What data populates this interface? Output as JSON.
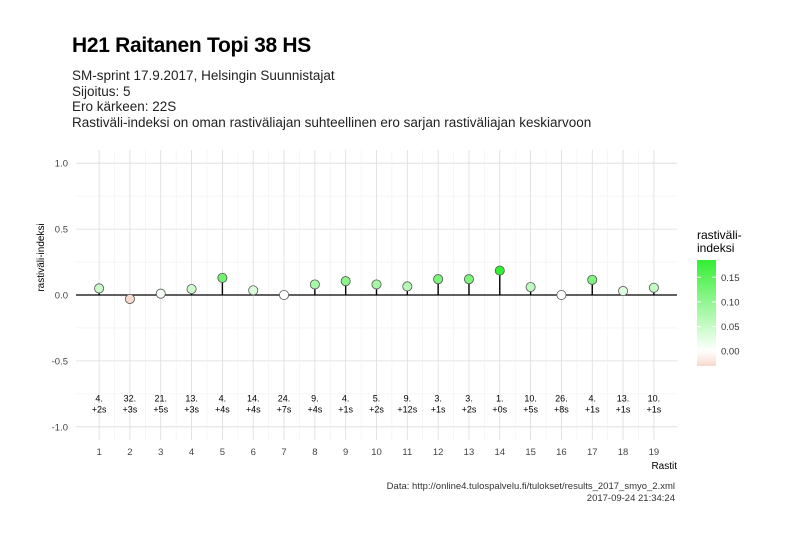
{
  "title": "H21 Raitanen Topi 38 HS",
  "subtitle_lines": [
    "SM-sprint 17.9.2017, Helsingin Suunnistajat",
    "Sijoitus: 5",
    "Ero kärkeen: 22S",
    "Rastiväli-indeksi on oman rastiväliajan suhteellinen ero sarjan rastiväliajan keskiarvoon"
  ],
  "caption_lines": [
    "Data: http://online4.tulospalvelu.fi/tulokset/results_2017_smyo_2.xml",
    "2017-09-24 21:34:24"
  ],
  "chart_data": {
    "type": "scatter",
    "style": "lollipop",
    "xlabel": "Rastit",
    "ylabel": "rastiväli-indeksi",
    "ylim": [
      -1.0,
      1.0
    ],
    "yticks": [
      1.0,
      0.5,
      0.0,
      -0.5,
      -1.0
    ],
    "ytick_labels": [
      "1.0",
      "0.5",
      "0.0",
      "-0.5",
      "-1.0"
    ],
    "grid": true,
    "x": [
      1,
      2,
      3,
      4,
      5,
      6,
      7,
      8,
      9,
      10,
      11,
      12,
      13,
      14,
      15,
      16,
      17,
      18,
      19
    ],
    "values": [
      0.05,
      -0.03,
      0.01,
      0.045,
      0.13,
      0.035,
      0.0,
      0.08,
      0.105,
      0.08,
      0.065,
      0.12,
      0.12,
      0.185,
      0.06,
      0.0,
      0.115,
      0.03,
      0.055
    ],
    "annotations": [
      {
        "rank": "4.",
        "diff": "+2s"
      },
      {
        "rank": "32.",
        "diff": "+3s"
      },
      {
        "rank": "21.",
        "diff": "+5s"
      },
      {
        "rank": "13.",
        "diff": "+3s"
      },
      {
        "rank": "4.",
        "diff": "+4s"
      },
      {
        "rank": "14.",
        "diff": "+4s"
      },
      {
        "rank": "24.",
        "diff": "+7s"
      },
      {
        "rank": "9.",
        "diff": "+4s"
      },
      {
        "rank": "4.",
        "diff": "+1s"
      },
      {
        "rank": "5.",
        "diff": "+2s"
      },
      {
        "rank": "9.",
        "diff": "+12s"
      },
      {
        "rank": "3.",
        "diff": "+1s"
      },
      {
        "rank": "3.",
        "diff": "+2s"
      },
      {
        "rank": "1.",
        "diff": "+0s"
      },
      {
        "rank": "10.",
        "diff": "+5s"
      },
      {
        "rank": "26.",
        "diff": "+8s"
      },
      {
        "rank": "4.",
        "diff": "+1s"
      },
      {
        "rank": "13.",
        "diff": "+1s"
      },
      {
        "rank": "10.",
        "diff": "+1s"
      }
    ],
    "annotation_y": -0.9,
    "legend": {
      "title": "rastiväli-\nindeksi",
      "position": "right",
      "ticks": [
        0.15,
        0.1,
        0.05,
        0.0
      ],
      "tick_labels": [
        "0.15",
        "0.10",
        "0.05",
        "0.00"
      ],
      "range": [
        -0.03,
        0.185
      ],
      "colors": {
        "low": "#f7d9cf",
        "mid": "#ffffff",
        "high": "#33ee33"
      }
    }
  }
}
